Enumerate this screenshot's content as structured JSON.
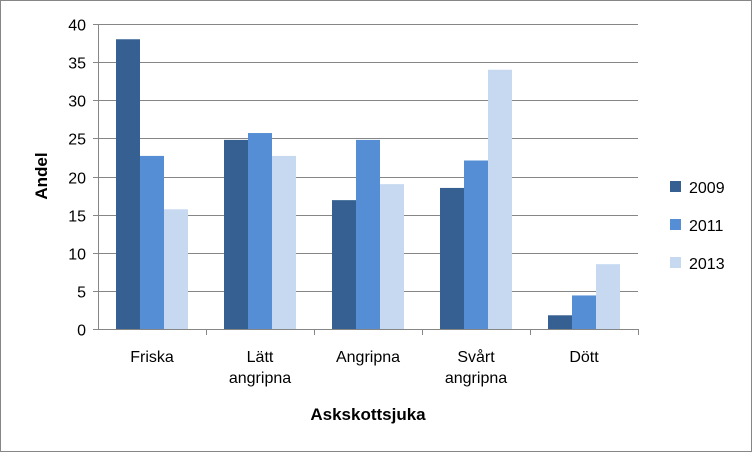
{
  "chart_data": {
    "type": "bar",
    "title": "",
    "xlabel": "Askskottsjuka",
    "ylabel": "Andel",
    "ylim": [
      0,
      40
    ],
    "yticks": [
      0,
      5,
      10,
      15,
      20,
      25,
      30,
      35,
      40
    ],
    "grid": true,
    "legend_position": "right",
    "categories": [
      [
        "Friska"
      ],
      [
        "Lätt",
        "angripna"
      ],
      [
        "Angripna"
      ],
      [
        "Svårt",
        "angripna"
      ],
      [
        "Dött"
      ]
    ],
    "series": [
      {
        "name": "2009",
        "color": "#366092",
        "values": [
          38.0,
          24.8,
          16.9,
          18.5,
          1.8
        ]
      },
      {
        "name": "2011",
        "color": "#558ED5",
        "values": [
          22.7,
          25.7,
          24.8,
          22.1,
          4.4
        ]
      },
      {
        "name": "2013",
        "color": "#C6D9F1",
        "values": [
          15.7,
          22.7,
          19.0,
          34.0,
          8.5
        ]
      }
    ]
  }
}
